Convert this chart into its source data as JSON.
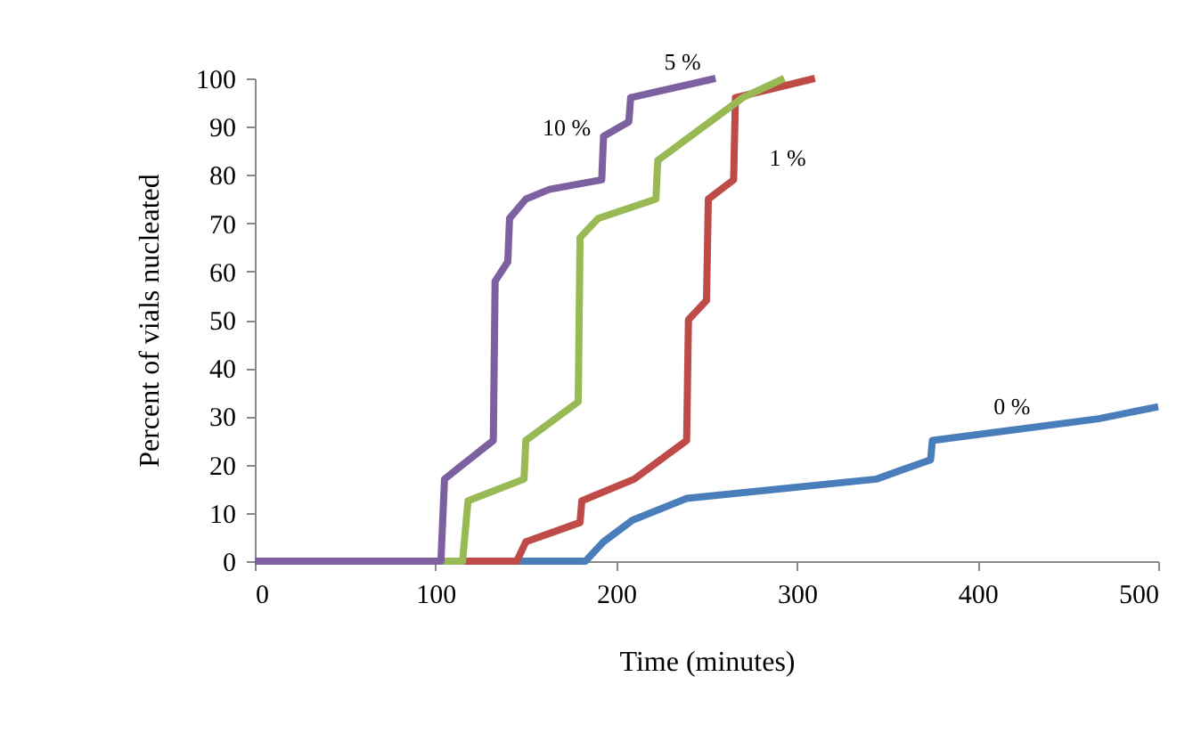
{
  "chart_data": {
    "type": "line",
    "xlabel": "Time (minutes)",
    "ylabel": "Percent of vials nucleated",
    "xlim": [
      0,
      500
    ],
    "xticks": [
      0,
      100,
      200,
      300,
      400,
      500
    ],
    "ylim": [
      0,
      100
    ],
    "yticks": [
      0,
      10,
      20,
      30,
      40,
      50,
      60,
      70,
      80,
      90,
      100
    ],
    "grid": false,
    "marker": "none",
    "line_style": "solid",
    "series": [
      {
        "color": "#4a7ebb",
        "x": [
          0,
          183,
          193,
          209,
          239,
          344,
          374,
          375,
          467,
          500
        ],
        "values": [
          0,
          0,
          4,
          8.5,
          13,
          17,
          21,
          25,
          29.5,
          32
        ]
      },
      {
        "color": "#be4b48",
        "x": [
          0,
          145,
          150,
          180,
          181,
          210,
          239,
          240,
          250,
          251,
          265,
          266,
          310
        ],
        "values": [
          0,
          0,
          4,
          8,
          12.5,
          17,
          25,
          50,
          54,
          75,
          79,
          96,
          100
        ]
      },
      {
        "color": "#98b954",
        "x": [
          0,
          115,
          118,
          149,
          150,
          179,
          180,
          190,
          222,
          223,
          270,
          293
        ],
        "values": [
          0,
          0,
          12.5,
          17,
          25,
          33,
          67,
          71,
          75,
          83,
          96,
          100
        ]
      },
      {
        "color": "#7d60a0",
        "x": [
          0,
          103,
          105,
          132,
          133,
          140,
          141,
          150,
          163,
          192,
          193,
          207,
          208,
          255
        ],
        "values": [
          0,
          0,
          17,
          25,
          58,
          62,
          71,
          75,
          77,
          79,
          88,
          91,
          96,
          100
        ]
      }
    ],
    "annotations": [
      {
        "text": "0 %",
        "x": 419,
        "y": 29
      },
      "1 %",
      "5 %",
      "10 %"
    ]
  }
}
